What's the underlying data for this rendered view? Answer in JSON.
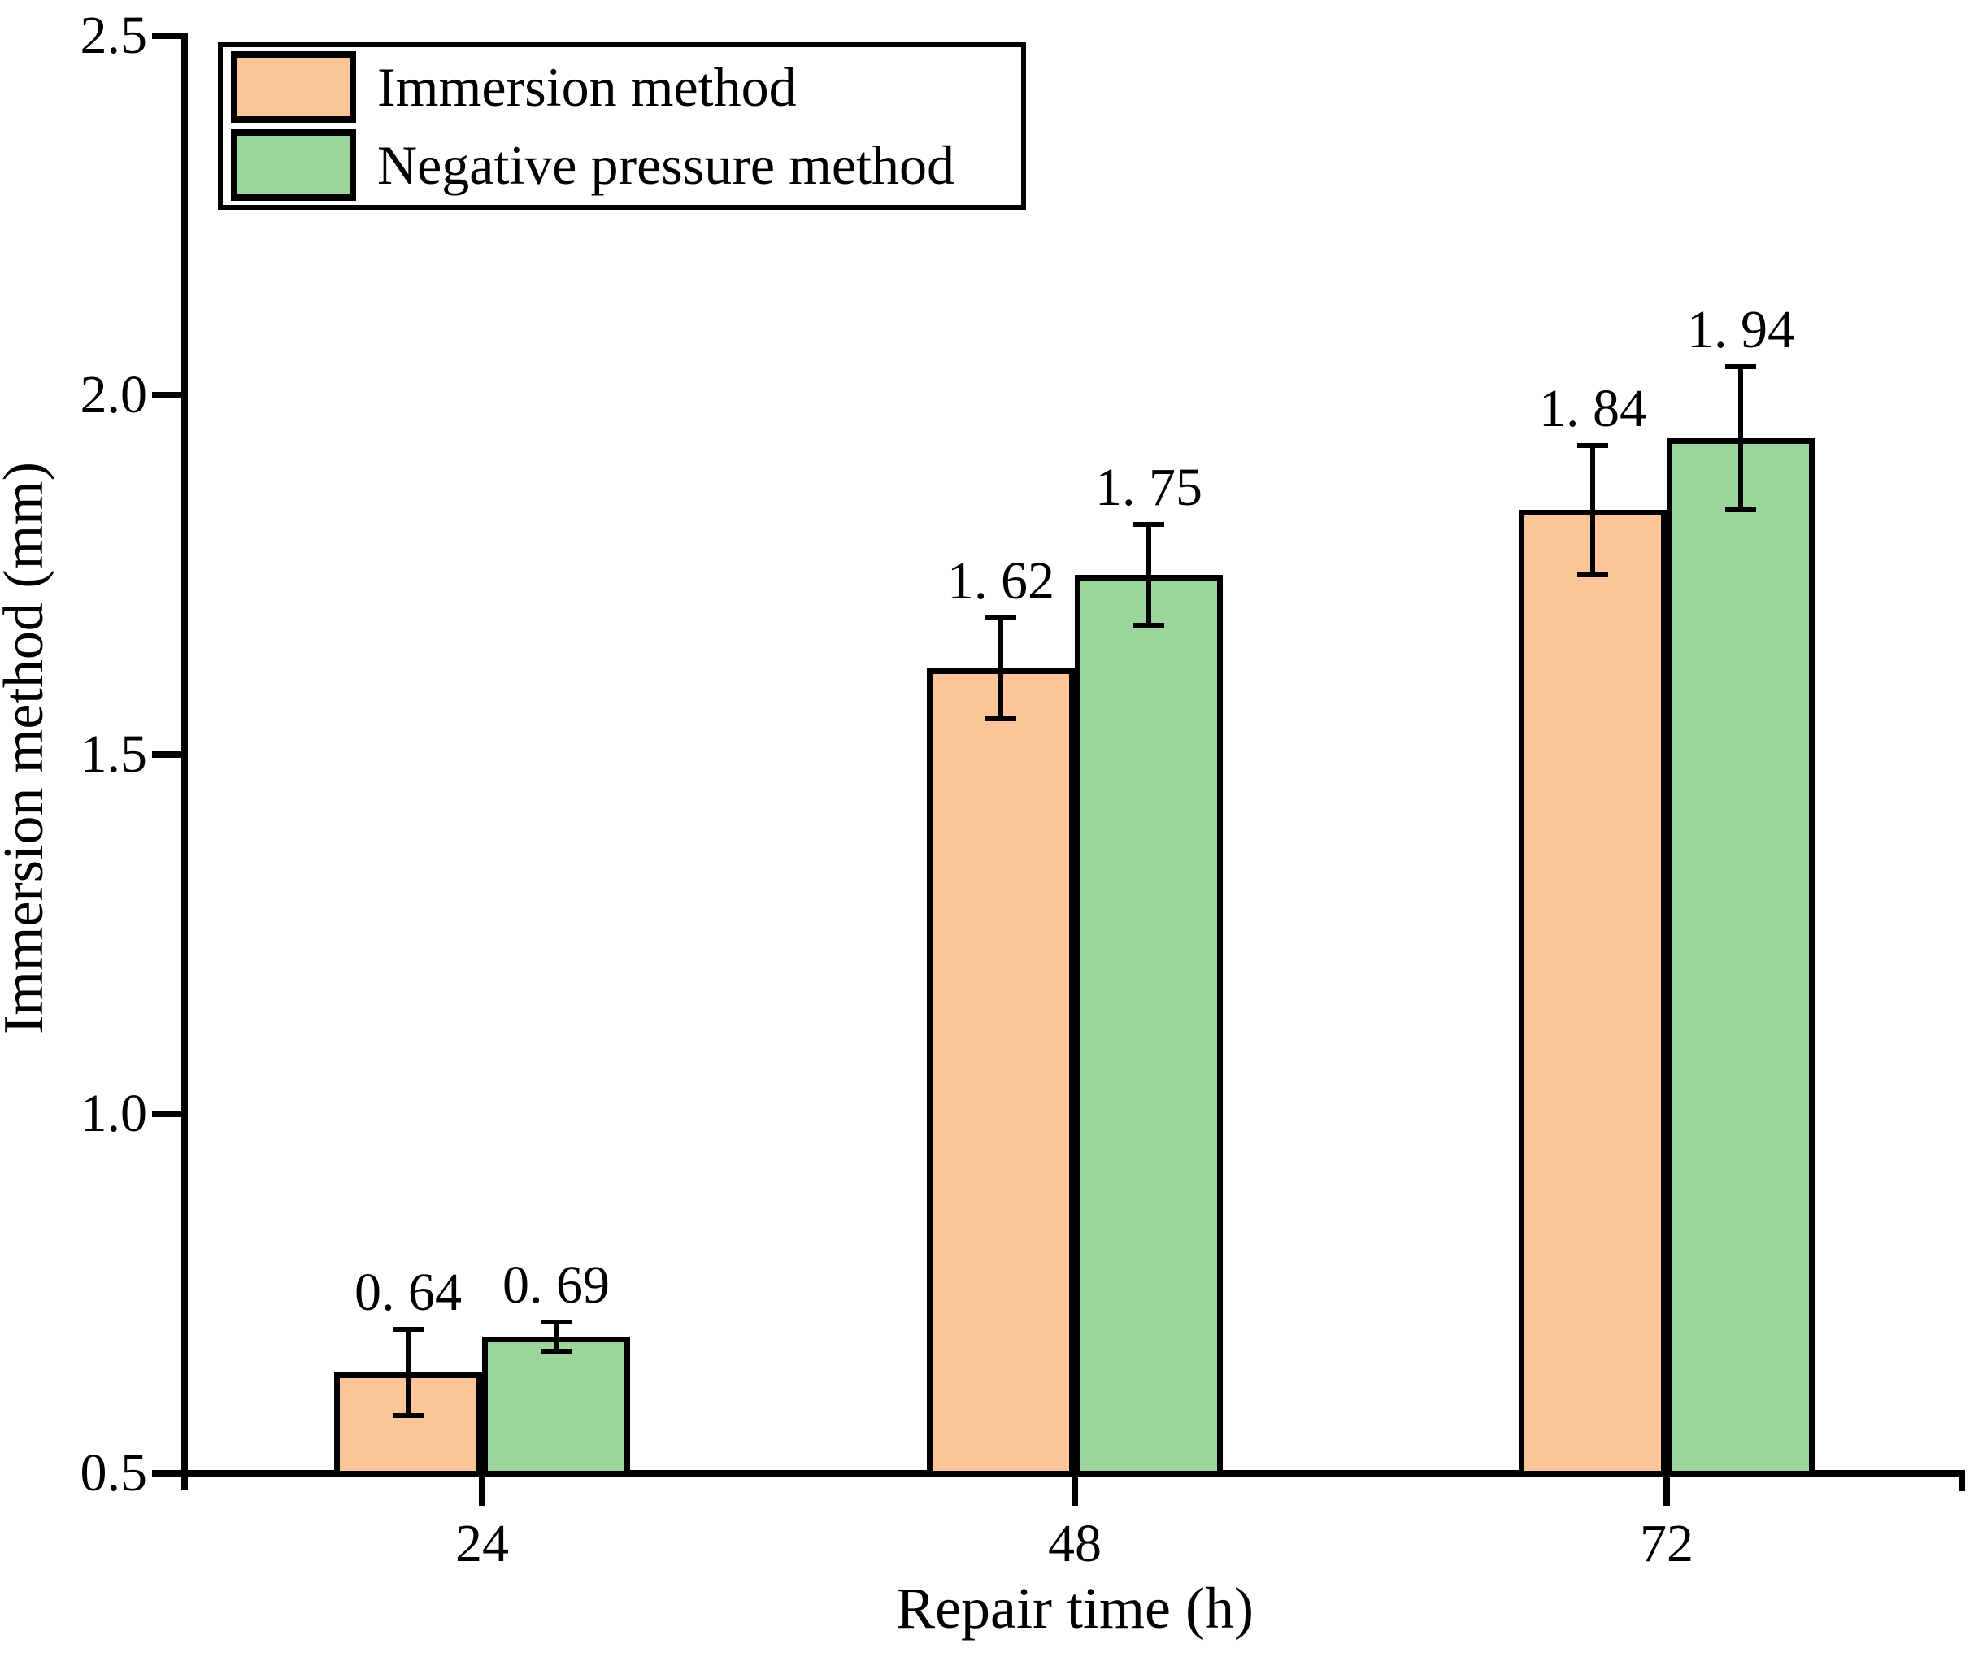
{
  "figure": {
    "background": "#ffffff",
    "axis_color": "#000000"
  },
  "axes": {
    "x_title": "Repair time (h)",
    "y_title": "Immersion method (mm)",
    "x_tick_labels": [
      "24",
      "48",
      "72"
    ],
    "y_tick_labels": [
      "0.5",
      "1.0",
      "1.5",
      "2.0",
      "2.5"
    ]
  },
  "legend": {
    "items": [
      {
        "label": "Immersion method",
        "color": "#FBC697"
      },
      {
        "label": "Negative pressure method",
        "color": "#9BD59C"
      }
    ]
  },
  "chart_data": {
    "type": "bar",
    "title": "",
    "xlabel": "Repair time (h)",
    "ylabel": "Immersion method (mm)",
    "categories": [
      "24",
      "48",
      "72"
    ],
    "series": [
      {
        "name": "Immersion method",
        "color": "#FBC697",
        "values": [
          0.64,
          1.62,
          1.84
        ],
        "errors": [
          0.06,
          0.07,
          0.09
        ],
        "labels": [
          "0. 64",
          "1. 62",
          "1. 84"
        ]
      },
      {
        "name": "Negative pressure method",
        "color": "#9BD59C",
        "values": [
          0.69,
          1.75,
          1.94
        ],
        "errors": [
          0.02,
          0.07,
          0.1
        ],
        "labels": [
          "0. 69",
          "1. 75",
          "1. 94"
        ]
      }
    ],
    "ylim": [
      0.5,
      2.5
    ],
    "y_ticks": [
      0.5,
      1.0,
      1.5,
      2.0,
      2.5
    ],
    "bar_edge_color": "#000000",
    "error_bar_color": "#000000",
    "grid": false,
    "legend_position": "top-left"
  }
}
